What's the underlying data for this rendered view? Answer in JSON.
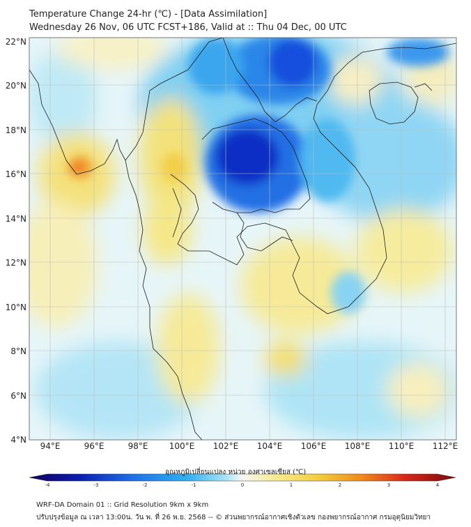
{
  "header": {
    "title_line1": "Temperature Change 24-hr (℃) - [Data Assimilation]",
    "title_line2": "Wednesday 26 Nov, 06 UTC FCST+186, Valid at :: Thu 04 Dec, 00 UTC"
  },
  "axes": {
    "lat_labels": [
      "22°N",
      "20°N",
      "18°N",
      "16°N",
      "14°N",
      "12°N",
      "10°N",
      "8°N",
      "6°N",
      "4°N"
    ],
    "lon_labels": [
      "94°E",
      "96°E",
      "98°E",
      "100°E",
      "102°E",
      "104°E",
      "106°E",
      "108°E",
      "110°E",
      "112°E"
    ]
  },
  "colorbar": {
    "title": "อุณหภูมิเปลี่ยนแปลง หน่วย องศาเซลเซียส (℃)",
    "ticks": [
      "-4",
      "-3",
      "-2",
      "-1",
      "0",
      "1",
      "2",
      "3",
      "4"
    ],
    "colors": [
      "#14005c",
      "#0a1fb0",
      "#1e6fe6",
      "#2fb0ef",
      "#a8e3f4",
      "#f7f7f2",
      "#f8ea90",
      "#f2cd3c",
      "#f08a1c",
      "#d8281a",
      "#7a0a0a"
    ]
  },
  "footer": {
    "line1": "WRF-DA Domain 01 :: Grid Resolution 9km x 9km",
    "line2": "ปรับปรุงข้อมูล ณ เวลา 13:00น. วัน พ. ที่ 26 พ.ย. 2568 -- © ส่วนพยากรณ์อากาศเชิงตัวเลข กองพยากรณ์อากาศ กรมอุตุนิยมวิทยา"
  },
  "field_colors": {
    "deep_blue": "#0b1fb8",
    "blue": "#1d6be3",
    "mid_blue": "#3cb3ef",
    "light_blue": "#a7e2f6",
    "pale": "#e9f6f8",
    "pale_yellow": "#f6f0b8",
    "yellow": "#f4df6a",
    "orange": "#f1a233",
    "red_orange": "#ee5a22",
    "border": "#1a1a1a",
    "grid": "#bdbdbd"
  }
}
